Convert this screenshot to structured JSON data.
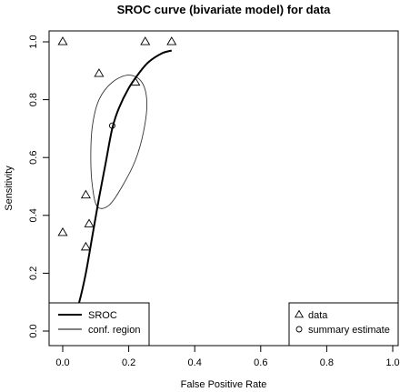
{
  "chart_data": {
    "type": "scatter",
    "title": "SROC curve (bivariate model) for data",
    "xlabel": "False Positive Rate",
    "ylabel": "Sensitivity",
    "xlim": [
      0,
      1
    ],
    "ylim": [
      0,
      1
    ],
    "x_ticks": [
      "0.0",
      "0.2",
      "0.4",
      "0.6",
      "0.8",
      "1.0"
    ],
    "y_ticks": [
      "0.0",
      "0.2",
      "0.4",
      "0.6",
      "0.8",
      "1.0"
    ],
    "grid": false,
    "colors": {
      "ink": "#000000",
      "region": "#333333",
      "background": "#ffffff"
    },
    "series": [
      {
        "name": "data",
        "marker": "triangle",
        "points": [
          {
            "x": 0.0,
            "y": 1.0
          },
          {
            "x": 0.25,
            "y": 1.0
          },
          {
            "x": 0.33,
            "y": 1.0
          },
          {
            "x": 0.11,
            "y": 0.89
          },
          {
            "x": 0.22,
            "y": 0.86
          },
          {
            "x": 0.07,
            "y": 0.47
          },
          {
            "x": 0.08,
            "y": 0.37
          },
          {
            "x": 0.0,
            "y": 0.34
          },
          {
            "x": 0.07,
            "y": 0.29
          }
        ]
      },
      {
        "name": "summary estimate",
        "marker": "circle",
        "points": [
          {
            "x": 0.15,
            "y": 0.71
          }
        ]
      },
      {
        "name": "SROC",
        "kind": "curve",
        "points": [
          {
            "x": 0.013,
            "y": 0.0
          },
          {
            "x": 0.03,
            "y": 0.03
          },
          {
            "x": 0.05,
            "y": 0.1
          },
          {
            "x": 0.07,
            "y": 0.2
          },
          {
            "x": 0.09,
            "y": 0.33
          },
          {
            "x": 0.11,
            "y": 0.46
          },
          {
            "x": 0.13,
            "y": 0.58
          },
          {
            "x": 0.15,
            "y": 0.7
          },
          {
            "x": 0.17,
            "y": 0.77
          },
          {
            "x": 0.2,
            "y": 0.84
          },
          {
            "x": 0.23,
            "y": 0.89
          },
          {
            "x": 0.26,
            "y": 0.93
          },
          {
            "x": 0.3,
            "y": 0.96
          },
          {
            "x": 0.33,
            "y": 0.97
          }
        ]
      },
      {
        "name": "conf. region",
        "kind": "region",
        "center": {
          "x": 0.165,
          "y": 0.65
        },
        "x_range": [
          0.08,
          0.25
        ],
        "y_range": [
          0.42,
          0.88
        ]
      }
    ],
    "legends": [
      {
        "position": "bottom-left",
        "entries": [
          {
            "label": "SROC",
            "style": "thick-line"
          },
          {
            "label": "conf. region",
            "style": "thin-line"
          }
        ]
      },
      {
        "position": "bottom-right",
        "entries": [
          {
            "label": "data",
            "style": "triangle"
          },
          {
            "label": "summary estimate",
            "style": "circle"
          }
        ]
      }
    ]
  }
}
